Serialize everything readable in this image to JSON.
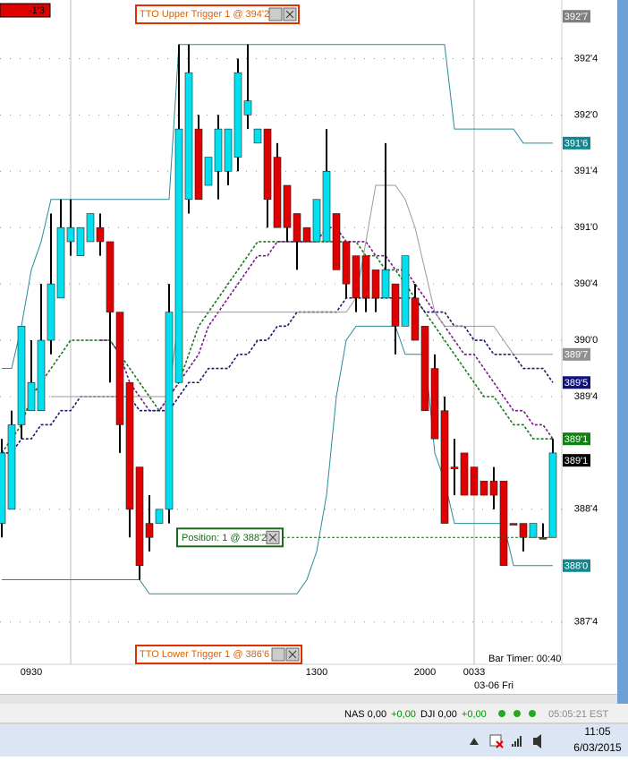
{
  "chart_data": {
    "type": "candlestick",
    "account_label": "-1'3",
    "bar_timer": "Bar Timer: 00:40",
    "categories": [
      null,
      null,
      null,
      "0930",
      null,
      null,
      null,
      null,
      null,
      null,
      null,
      null,
      null,
      null,
      null,
      null,
      null,
      null,
      null,
      null,
      null,
      null,
      null,
      null,
      null,
      null,
      null,
      null,
      null,
      null,
      null,
      null,
      "1300",
      null,
      null,
      null,
      null,
      null,
      null,
      null,
      null,
      null,
      null,
      "2000",
      null,
      null,
      null,
      null,
      "0033",
      null,
      null,
      null,
      null,
      null,
      null,
      null,
      null
    ],
    "date_label": "03-06 Fri",
    "open": [
      388.375,
      388.5,
      389.25,
      389.375,
      389.375,
      390,
      390.375,
      390.875,
      390.75,
      390.875,
      391,
      390.875,
      390.25,
      389.625,
      388.875,
      388.375,
      388.375,
      388.5,
      389.625,
      391.25,
      391.875,
      391.375,
      391.5,
      391.5,
      391.625,
      392,
      391.75,
      391.875,
      391.625,
      391.375,
      391.125,
      391,
      390.875,
      390.875,
      391.125,
      390.875,
      390.75,
      390.75,
      390.625,
      390.375,
      390.5,
      390.125,
      390.375,
      390.125,
      389.75,
      389.375,
      388.875,
      389,
      388.875,
      388.75,
      388.75,
      388.75,
      388.375,
      388.375,
      388.25,
      388.25,
      388.25
    ],
    "high": [
      389.125,
      389.375,
      390.125,
      390,
      390.5,
      391.125,
      391.25,
      391.25,
      391,
      391.125,
      391.125,
      390.875,
      390.25,
      389.625,
      388.875,
      388.625,
      388.5,
      390.5,
      392.625,
      392.625,
      392,
      391.625,
      392,
      391.875,
      392.5,
      392.625,
      391.875,
      391.875,
      391.75,
      391.375,
      391.125,
      391,
      391.25,
      391.875,
      391.125,
      390.875,
      390.75,
      390.75,
      390.625,
      391.75,
      390.5,
      390.75,
      390.5,
      390.125,
      389.875,
      389.5,
      389.125,
      389,
      388.875,
      388.75,
      388.875,
      388.75,
      388.375,
      388.375,
      388.375,
      388.375,
      389.125
    ],
    "low": [
      388.25,
      388.5,
      389.125,
      389.375,
      389.375,
      389.875,
      390.375,
      390.75,
      390.75,
      390.875,
      390.75,
      389.625,
      389,
      388.25,
      387.875,
      388.125,
      388.375,
      388.375,
      389.625,
      391.125,
      391.25,
      391.375,
      391.25,
      391.375,
      391.5,
      391.875,
      391.75,
      391,
      391,
      390.875,
      390.625,
      390.875,
      390.875,
      390.875,
      390.625,
      390.375,
      390.25,
      390.25,
      390.25,
      390.375,
      389.875,
      390.125,
      390,
      389.375,
      389.125,
      388.375,
      388.625,
      388.625,
      388.625,
      388.625,
      388.5,
      388,
      388.375,
      388.125,
      388.25,
      388.25,
      388.25
    ],
    "close": [
      389,
      389.25,
      390.125,
      389.625,
      390,
      390.5,
      391,
      391,
      391,
      391.125,
      390.875,
      390.25,
      389.25,
      388.5,
      388,
      388.25,
      388.5,
      390.25,
      391.875,
      392.375,
      391.25,
      391.625,
      391.875,
      391.875,
      392.375,
      392.125,
      391.875,
      391.25,
      391,
      391,
      390.875,
      390.875,
      391.25,
      391.5,
      390.625,
      390.5,
      390.375,
      390.375,
      390.375,
      390.625,
      390.125,
      390.75,
      390,
      389.375,
      389.125,
      388.375,
      388.875,
      388.625,
      388.625,
      388.625,
      388.625,
      388,
      388.375,
      388.25,
      388.375,
      388.25,
      389
    ],
    "up_color": "#00e0ee",
    "down_color": "#e00000",
    "series": [
      {
        "color": "#1a7a1a",
        "style": "dashed",
        "values": [
          389,
          389.125,
          389.25,
          389.5,
          389.625,
          389.75,
          389.875,
          390,
          390,
          390,
          390,
          390,
          389.875,
          389.75,
          389.625,
          389.5,
          389.375,
          389.5,
          389.625,
          389.875,
          390.125,
          390.25,
          390.375,
          390.5,
          390.625,
          390.75,
          390.875,
          390.875,
          390.875,
          390.875,
          390.875,
          390.875,
          390.875,
          390.875,
          390.875,
          390.875,
          390.875,
          390.75,
          390.75,
          390.625,
          390.625,
          390.5,
          390.375,
          390.25,
          390.125,
          390,
          389.875,
          389.75,
          389.625,
          389.5,
          389.5,
          389.375,
          389.25,
          389.25,
          389.125,
          389.125,
          389.125
        ]
      },
      {
        "color": "#7a1a8a",
        "style": "dashed",
        "values": [
          null,
          null,
          null,
          null,
          null,
          null,
          null,
          null,
          null,
          null,
          390,
          390,
          389.875,
          389.625,
          389.5,
          389.375,
          389.375,
          389.5,
          389.625,
          389.75,
          389.875,
          390.125,
          390.25,
          390.375,
          390.5,
          390.625,
          390.75,
          390.75,
          390.875,
          390.875,
          390.875,
          390.875,
          390.875,
          391,
          391,
          390.875,
          390.875,
          390.875,
          390.75,
          390.75,
          390.625,
          390.625,
          390.5,
          390.375,
          390.25,
          390.125,
          390,
          389.875,
          389.875,
          389.75,
          389.625,
          389.5,
          389.375,
          389.375,
          389.25,
          389.25,
          389.125
        ]
      },
      {
        "color": "#1a1a6e",
        "style": "dashed",
        "values": [
          389,
          389,
          389.125,
          389.125,
          389.25,
          389.25,
          389.375,
          389.375,
          389.5,
          389.5,
          389.5,
          389.5,
          389.5,
          389.5,
          389.375,
          389.375,
          389.375,
          389.375,
          389.5,
          389.625,
          389.625,
          389.75,
          389.75,
          389.75,
          389.875,
          389.875,
          390,
          390,
          390.125,
          390.125,
          390.25,
          390.25,
          390.25,
          390.25,
          390.25,
          390.375,
          390.375,
          390.375,
          390.375,
          390.375,
          390.375,
          390.375,
          390.375,
          390.25,
          390.25,
          390.25,
          390.125,
          390.125,
          390,
          390,
          389.875,
          389.875,
          389.875,
          389.75,
          389.75,
          389.75,
          389.625
        ]
      },
      {
        "color": "#2a8a9a",
        "style": "solid",
        "values": [
          389.75,
          389.75,
          390.125,
          390.625,
          390.875,
          391.25,
          391.25,
          391.25,
          391.25,
          391.25,
          391.25,
          391.25,
          391.25,
          391.25,
          391.25,
          391.25,
          391.25,
          391.25,
          392.625,
          392.625,
          392.625,
          392.625,
          392.625,
          392.625,
          392.625,
          392.625,
          392.625,
          392.625,
          392.625,
          392.625,
          392.625,
          392.625,
          392.625,
          392.625,
          392.625,
          392.625,
          392.625,
          392.625,
          392.625,
          392.625,
          392.625,
          392.625,
          392.625,
          392.625,
          392.625,
          392.625,
          391.875,
          391.875,
          391.875,
          391.875,
          391.875,
          391.875,
          391.875,
          391.75,
          391.75,
          391.75,
          391.75
        ]
      },
      {
        "color": "#2a8a9a",
        "style": "solid",
        "values": [
          387.875,
          387.875,
          387.875,
          387.875,
          387.875,
          387.875,
          387.875,
          387.875,
          387.875,
          387.875,
          387.875,
          387.875,
          387.875,
          387.875,
          387.875,
          387.75,
          387.75,
          387.75,
          387.75,
          387.75,
          387.75,
          387.75,
          387.75,
          387.75,
          387.75,
          387.75,
          387.75,
          387.75,
          387.75,
          387.75,
          387.75,
          387.875,
          388.125,
          388.625,
          389.5,
          390,
          390.125,
          390.125,
          390.125,
          390.125,
          390.125,
          389.875,
          389.875,
          389.875,
          389,
          388.75,
          388.375,
          388.375,
          388.375,
          388.375,
          388.375,
          388.375,
          388,
          388,
          388,
          388,
          388
        ]
      },
      {
        "color": "#9a9a9a",
        "style": "solid",
        "values": [
          null,
          null,
          null,
          null,
          null,
          389.5,
          389.5,
          389.5,
          389.5,
          389.5,
          389.5,
          389.5,
          389.5,
          389.5,
          389.5,
          389.5,
          389.5,
          389.5,
          390.25,
          390.25,
          390.25,
          390.25,
          390.25,
          390.25,
          390.25,
          390.25,
          390.25,
          390.25,
          390.25,
          390.25,
          390.25,
          390.25,
          390.25,
          390.25,
          390.25,
          390.25,
          390.375,
          390.875,
          391.375,
          391.375,
          391.375,
          391.25,
          391,
          390.625,
          390.25,
          390.125,
          390.125,
          390.125,
          390.125,
          390.125,
          390.125,
          390,
          389.875,
          389.875,
          389.875,
          389.875,
          389.875
        ]
      }
    ],
    "ylim": [
      387.14,
      393.02
    ],
    "yticks": [
      {
        "value": 392.5,
        "label": "392'4"
      },
      {
        "value": 392,
        "label": "392'0"
      },
      {
        "value": 391.5,
        "label": "391'4"
      },
      {
        "value": 391,
        "label": "391'0"
      },
      {
        "value": 390.5,
        "label": "390'4"
      },
      {
        "value": 390,
        "label": "390'0"
      },
      {
        "value": 389.5,
        "label": "389'4"
      },
      {
        "value": 388.5,
        "label": "388'4"
      },
      {
        "value": 387.5,
        "label": "387'4"
      }
    ],
    "grid": true,
    "price_tags": [
      {
        "label": "392'7",
        "value": 392.875,
        "color": "#808080"
      },
      {
        "label": "391'6",
        "value": 391.75,
        "color": "#108890"
      },
      {
        "label": "389'7",
        "value": 389.875,
        "color": "#909090"
      },
      {
        "label": "389'5",
        "value": 389.625,
        "color": "#101080"
      },
      {
        "label": "389'1",
        "value": 389.125,
        "color": "#108010"
      },
      {
        "label": "389'1",
        "value": 389.125,
        "color": "#000000"
      },
      {
        "label": "388'0",
        "value": 388,
        "color": "#108890"
      }
    ],
    "position": {
      "label": "Position: 1 @ 388'2",
      "value": 388.25,
      "color": "#1a6a1a"
    },
    "triggers": [
      {
        "label": "TTO Upper Trigger 1 @ 394'2"
      },
      {
        "label": "TTO Lower Trigger 1 @ 386'6"
      }
    ]
  },
  "status_bar": {
    "items": [
      {
        "text": "NAS 0,00",
        "color": "#000000"
      },
      {
        "text": "+0,00",
        "color": "#009000"
      },
      {
        "text": "DJI 0,00",
        "color": "#000000"
      },
      {
        "text": "+0,00",
        "color": "#009000"
      }
    ],
    "clock": "05:05:21 EST"
  },
  "taskbar": {
    "time": "11:05",
    "date": "6/03/2015"
  }
}
